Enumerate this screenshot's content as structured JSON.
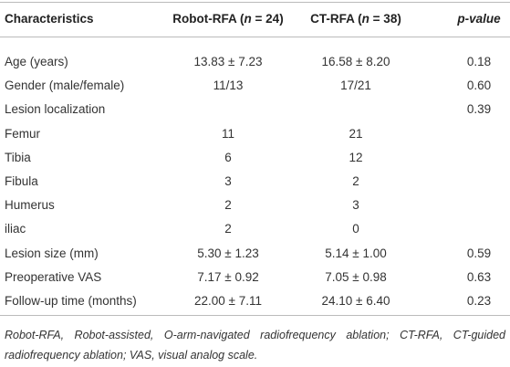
{
  "table": {
    "header": [
      [
        "Characteristics"
      ],
      [
        "Robot-RFA (",
        "n",
        " = 24)"
      ],
      [
        "CT-RFA (",
        "n",
        " = 38)"
      ],
      [
        "p",
        "-value"
      ]
    ],
    "rows": [
      [
        "Age (years)",
        "13.83 ± 7.23",
        "16.58 ± 8.20",
        "0.18"
      ],
      [
        "Gender (male/female)",
        "11/13",
        "17/21",
        "0.60"
      ],
      [
        "Lesion localization",
        null,
        null,
        "0.39"
      ],
      [
        "Femur",
        "11",
        "21",
        null
      ],
      [
        "Tibia",
        "6",
        "12",
        null
      ],
      [
        "Fibula",
        "3",
        "2",
        null
      ],
      [
        "Humerus",
        "2",
        "3",
        null
      ],
      [
        "iliac",
        "2",
        "0",
        null
      ],
      [
        "Lesion size (mm)",
        "5.30 ± 1.23",
        "5.14 ± 1.00",
        "0.59"
      ],
      [
        "Preoperative VAS",
        "7.17 ± 0.92",
        "7.05 ± 0.98",
        "0.63"
      ],
      [
        "Follow-up time (months)",
        "22.00 ± 7.11",
        "24.10 ± 6.40",
        "0.23"
      ]
    ],
    "footnote": "Robot-RFA, Robot-assisted, O-arm-navigated radiofrequency ablation; CT-RFA, CT-guided radiofrequency ablation; VAS, visual analog scale."
  }
}
